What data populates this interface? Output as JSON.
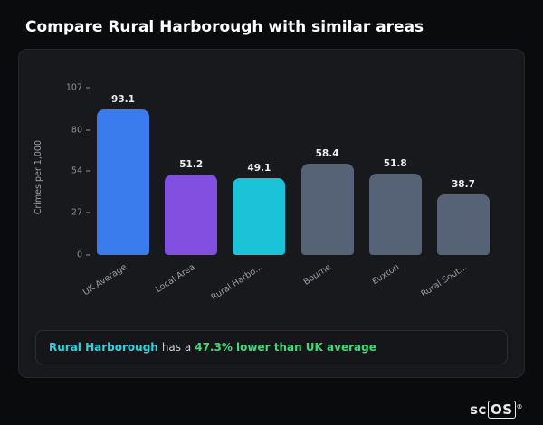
{
  "page": {
    "title": "Compare Rural Harborough with similar areas"
  },
  "chart_data": {
    "type": "bar",
    "title": "",
    "xlabel": "",
    "ylabel": "Crimes per 1,000",
    "ylim": [
      0,
      107
    ],
    "yticks": [
      0,
      27,
      54,
      80,
      107
    ],
    "grid": false,
    "legend": false,
    "categories": [
      "UK Average",
      "Local Area",
      "Rural Harbo...",
      "Bourne",
      "Euxton",
      "Rural Sout..."
    ],
    "values": [
      93.1,
      51.2,
      49.1,
      58.4,
      51.8,
      38.7
    ],
    "bar_colors": [
      "#3a7bed",
      "#8250e0",
      "#1ac3d8",
      "#566376",
      "#566376",
      "#566376"
    ]
  },
  "note": {
    "area": "Rural Harborough",
    "middle": "has a",
    "highlight": "47.3% lower than UK average"
  },
  "logo": {
    "prefix": "sc",
    "suffix": "OS",
    "registered": "®"
  }
}
